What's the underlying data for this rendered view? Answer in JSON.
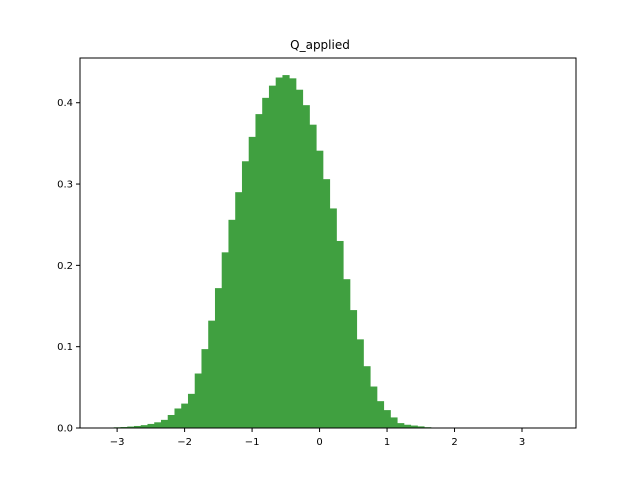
{
  "chart_data": {
    "type": "bar",
    "title": "Q_applied",
    "xlabel": "",
    "ylabel": "",
    "bar_color": "#40a040",
    "xlim": [
      -3.55,
      3.8
    ],
    "ylim": [
      0,
      0.455
    ],
    "xticks": [
      -3,
      -2,
      -1,
      0,
      1,
      2,
      3
    ],
    "xtick_labels": [
      "−3",
      "−2",
      "−1",
      "0",
      "1",
      "2",
      "3"
    ],
    "yticks": [
      0.0,
      0.1,
      0.2,
      0.3,
      0.4
    ],
    "ytick_labels": [
      "0.0",
      "0.1",
      "0.2",
      "0.3",
      "0.4"
    ],
    "grid": false,
    "legend": "none",
    "bin_width": 0.1,
    "bins": [
      {
        "x": -3.2,
        "y": 0.0004
      },
      {
        "x": -3.1,
        "y": 0.0006
      },
      {
        "x": -3.0,
        "y": 0.0009
      },
      {
        "x": -2.9,
        "y": 0.0012
      },
      {
        "x": -2.8,
        "y": 0.0018
      },
      {
        "x": -2.7,
        "y": 0.0025
      },
      {
        "x": -2.6,
        "y": 0.0035
      },
      {
        "x": -2.5,
        "y": 0.005
      },
      {
        "x": -2.4,
        "y": 0.007
      },
      {
        "x": -2.3,
        "y": 0.01
      },
      {
        "x": -2.2,
        "y": 0.016
      },
      {
        "x": -2.1,
        "y": 0.024
      },
      {
        "x": -2.0,
        "y": 0.03
      },
      {
        "x": -1.9,
        "y": 0.042
      },
      {
        "x": -1.8,
        "y": 0.067
      },
      {
        "x": -1.7,
        "y": 0.097
      },
      {
        "x": -1.6,
        "y": 0.132
      },
      {
        "x": -1.5,
        "y": 0.172
      },
      {
        "x": -1.4,
        "y": 0.216
      },
      {
        "x": -1.3,
        "y": 0.256
      },
      {
        "x": -1.2,
        "y": 0.29
      },
      {
        "x": -1.1,
        "y": 0.328
      },
      {
        "x": -1.0,
        "y": 0.358
      },
      {
        "x": -0.9,
        "y": 0.386
      },
      {
        "x": -0.8,
        "y": 0.406
      },
      {
        "x": -0.7,
        "y": 0.421
      },
      {
        "x": -0.6,
        "y": 0.431
      },
      {
        "x": -0.5,
        "y": 0.434
      },
      {
        "x": -0.4,
        "y": 0.43
      },
      {
        "x": -0.3,
        "y": 0.416
      },
      {
        "x": -0.2,
        "y": 0.397
      },
      {
        "x": -0.1,
        "y": 0.373
      },
      {
        "x": 0.0,
        "y": 0.341
      },
      {
        "x": 0.1,
        "y": 0.306
      },
      {
        "x": 0.2,
        "y": 0.27
      },
      {
        "x": 0.3,
        "y": 0.23
      },
      {
        "x": 0.4,
        "y": 0.183
      },
      {
        "x": 0.5,
        "y": 0.145
      },
      {
        "x": 0.6,
        "y": 0.109
      },
      {
        "x": 0.7,
        "y": 0.076
      },
      {
        "x": 0.8,
        "y": 0.051
      },
      {
        "x": 0.9,
        "y": 0.033
      },
      {
        "x": 1.0,
        "y": 0.022
      },
      {
        "x": 1.1,
        "y": 0.013
      },
      {
        "x": 1.2,
        "y": 0.006
      },
      {
        "x": 1.3,
        "y": 0.004
      },
      {
        "x": 1.4,
        "y": 0.003
      },
      {
        "x": 1.5,
        "y": 0.002
      },
      {
        "x": 1.6,
        "y": 0.001
      }
    ]
  }
}
